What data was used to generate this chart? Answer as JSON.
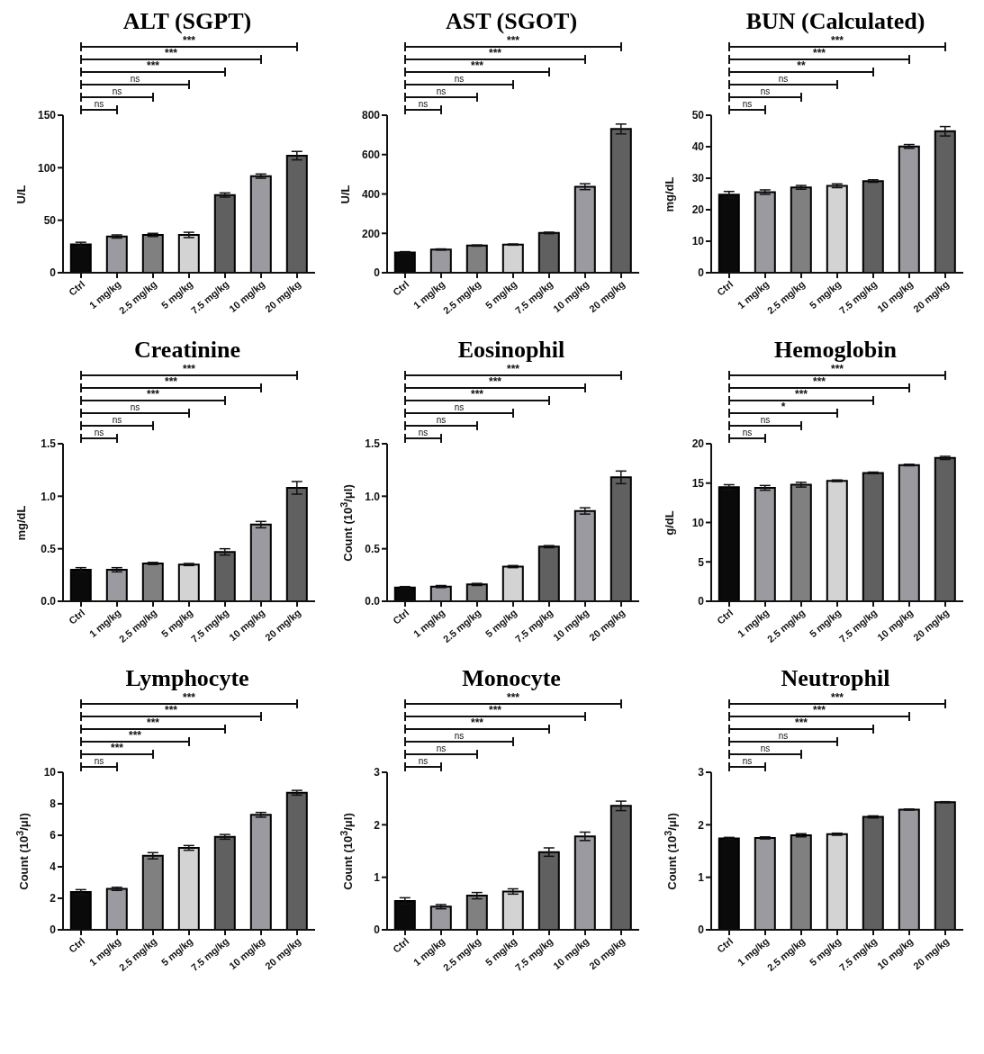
{
  "chart_data": [
    {
      "type": "bar",
      "title": "ALT (SGPT)",
      "ylabel": "U/L",
      "categories": [
        "Ctrl",
        "1 mg/kg",
        "2.5 mg/kg",
        "5 mg/kg",
        "7.5 mg/kg",
        "10 mg/kg",
        "20 mg/kg"
      ],
      "values": [
        27,
        34.5,
        36,
        36,
        74,
        92,
        111.5
      ],
      "errors": [
        2,
        1.5,
        1.5,
        2.5,
        2,
        2,
        4
      ],
      "colors": [
        "#0a0a0a",
        "#9a9aa0",
        "#808080",
        "#d3d3d3",
        "#606060",
        "#9a9aa0",
        "#606060"
      ],
      "ylim": [
        0,
        150
      ],
      "yticks": [
        0,
        50,
        100,
        150
      ],
      "annotations": [
        "ns",
        "ns",
        "ns",
        "***",
        "***",
        "***"
      ]
    },
    {
      "type": "bar",
      "title": "AST (SGOT)",
      "ylabel": "U/L",
      "categories": [
        "Ctrl",
        "1 mg/kg",
        "2.5 mg/kg",
        "5 mg/kg",
        "7.5 mg/kg",
        "10 mg/kg",
        "20 mg/kg"
      ],
      "values": [
        103,
        118,
        138,
        143,
        202,
        437,
        730
      ],
      "errors": [
        4,
        3,
        3,
        3,
        4,
        15,
        25
      ],
      "colors": [
        "#0a0a0a",
        "#9a9aa0",
        "#808080",
        "#d3d3d3",
        "#606060",
        "#9a9aa0",
        "#606060"
      ],
      "ylim": [
        0,
        800
      ],
      "yticks": [
        0,
        200,
        400,
        600,
        800
      ],
      "annotations": [
        "ns",
        "ns",
        "ns",
        "***",
        "***",
        "***"
      ]
    },
    {
      "type": "bar",
      "title": "BUN (Calculated)",
      "ylabel": "mg/dL",
      "categories": [
        "Ctrl",
        "1 mg/kg",
        "2.5 mg/kg",
        "5 mg/kg",
        "7.5 mg/kg",
        "10 mg/kg",
        "20 mg/kg"
      ],
      "values": [
        24.8,
        25.6,
        27.1,
        27.6,
        29.1,
        40.1,
        44.9
      ],
      "errors": [
        1,
        0.7,
        0.6,
        0.6,
        0.4,
        0.6,
        1.5
      ],
      "colors": [
        "#0a0a0a",
        "#9a9aa0",
        "#808080",
        "#d3d3d3",
        "#606060",
        "#9a9aa0",
        "#606060"
      ],
      "ylim": [
        0,
        50
      ],
      "yticks": [
        0,
        10,
        20,
        30,
        40,
        50
      ],
      "annotations": [
        "ns",
        "ns",
        "ns",
        "**",
        "***",
        "***"
      ]
    },
    {
      "type": "bar",
      "title": "Creatinine",
      "ylabel": "mg/dL",
      "categories": [
        "Ctrl",
        "1 mg/kg",
        "2.5 mg/kg",
        "5 mg/kg",
        "7.5 mg/kg",
        "10 mg/kg",
        "20 mg/kg"
      ],
      "values": [
        0.3,
        0.3,
        0.36,
        0.35,
        0.47,
        0.73,
        1.08
      ],
      "errors": [
        0.02,
        0.02,
        0.01,
        0.01,
        0.03,
        0.03,
        0.06
      ],
      "colors": [
        "#0a0a0a",
        "#9a9aa0",
        "#808080",
        "#d3d3d3",
        "#606060",
        "#9a9aa0",
        "#606060"
      ],
      "ylim": [
        0,
        1.5
      ],
      "yticks": [
        {
          "value": 0,
          "label": "0.0"
        },
        {
          "value": 0.5,
          "label": "0.5"
        },
        {
          "value": 1,
          "label": "1.0"
        },
        {
          "value": 1.5,
          "label": "1.5"
        }
      ],
      "annotations": [
        "ns",
        "ns",
        "ns",
        "***",
        "***",
        "***"
      ]
    },
    {
      "type": "bar",
      "title": "Eosinophil",
      "ylabel": "Count (10$^{3}$/μl)",
      "categories": [
        "Ctrl",
        "1 mg/kg",
        "2.5 mg/kg",
        "5 mg/kg",
        "7.5 mg/kg",
        "10 mg/kg",
        "20 mg/kg"
      ],
      "values": [
        0.13,
        0.14,
        0.16,
        0.33,
        0.52,
        0.86,
        1.18
      ],
      "errors": [
        0.01,
        0.01,
        0.01,
        0.01,
        0.01,
        0.03,
        0.06
      ],
      "colors": [
        "#0a0a0a",
        "#9a9aa0",
        "#808080",
        "#d3d3d3",
        "#606060",
        "#9a9aa0",
        "#606060"
      ],
      "ylim": [
        0,
        1.5
      ],
      "yticks": [
        {
          "value": 0,
          "label": "0.0"
        },
        {
          "value": 0.5,
          "label": "0.5"
        },
        {
          "value": 1,
          "label": "1.0"
        },
        {
          "value": 1.5,
          "label": "1.5"
        }
      ],
      "annotations": [
        "ns",
        "ns",
        "ns",
        "***",
        "***",
        "***"
      ]
    },
    {
      "type": "bar",
      "title": "Hemoglobin",
      "ylabel": "g/dL",
      "categories": [
        "Ctrl",
        "1 mg/kg",
        "2.5 mg/kg",
        "5 mg/kg",
        "7.5 mg/kg",
        "10 mg/kg",
        "20 mg/kg"
      ],
      "values": [
        14.5,
        14.4,
        14.8,
        15.3,
        16.3,
        17.3,
        18.2
      ],
      "errors": [
        0.3,
        0.3,
        0.3,
        0.1,
        0.1,
        0.1,
        0.2
      ],
      "colors": [
        "#0a0a0a",
        "#9a9aa0",
        "#808080",
        "#d3d3d3",
        "#606060",
        "#9a9aa0",
        "#606060"
      ],
      "ylim": [
        0,
        20
      ],
      "yticks": [
        0,
        5,
        10,
        15,
        20
      ],
      "annotations": [
        "ns",
        "ns",
        "*",
        "***",
        "***",
        "***"
      ]
    },
    {
      "type": "bar",
      "title": "Lymphocyte",
      "ylabel": "Count (10$^{3}$/μl)",
      "categories": [
        "Ctrl",
        "1 mg/kg",
        "2.5 mg/kg",
        "5 mg/kg",
        "7.5 mg/kg",
        "10 mg/kg",
        "20 mg/kg"
      ],
      "values": [
        2.4,
        2.6,
        4.7,
        5.2,
        5.9,
        7.3,
        8.7
      ],
      "errors": [
        0.15,
        0.1,
        0.2,
        0.15,
        0.15,
        0.15,
        0.15
      ],
      "colors": [
        "#0a0a0a",
        "#9a9aa0",
        "#808080",
        "#d3d3d3",
        "#606060",
        "#9a9aa0",
        "#606060"
      ],
      "ylim": [
        0,
        10
      ],
      "yticks": [
        0,
        2,
        4,
        6,
        8,
        10
      ],
      "annotations": [
        "ns",
        "***",
        "***",
        "***",
        "***",
        "***"
      ]
    },
    {
      "type": "bar",
      "title": "Monocyte",
      "ylabel": "Count (10$^{3}$/μl)",
      "categories": [
        "Ctrl",
        "1 mg/kg",
        "2.5 mg/kg",
        "5 mg/kg",
        "7.5 mg/kg",
        "10 mg/kg",
        "20 mg/kg"
      ],
      "values": [
        0.55,
        0.44,
        0.65,
        0.73,
        1.48,
        1.78,
        2.36
      ],
      "errors": [
        0.06,
        0.04,
        0.06,
        0.05,
        0.08,
        0.08,
        0.09
      ],
      "colors": [
        "#0a0a0a",
        "#9a9aa0",
        "#808080",
        "#d3d3d3",
        "#606060",
        "#9a9aa0",
        "#606060"
      ],
      "ylim": [
        0,
        3
      ],
      "yticks": [
        0,
        1,
        2,
        3
      ],
      "annotations": [
        "ns",
        "ns",
        "ns",
        "***",
        "***",
        "***"
      ]
    },
    {
      "type": "bar",
      "title": "Neutrophil",
      "ylabel": "Count (10$^{3}$/μl)",
      "categories": [
        "Ctrl",
        "1 mg/kg",
        "2.5 mg/kg",
        "5 mg/kg",
        "7.5 mg/kg",
        "10 mg/kg",
        "20 mg/kg"
      ],
      "values": [
        1.74,
        1.75,
        1.8,
        1.82,
        2.15,
        2.29,
        2.43
      ],
      "errors": [
        0.02,
        0.02,
        0.03,
        0.02,
        0.02,
        0.01,
        0.01
      ],
      "colors": [
        "#0a0a0a",
        "#9a9aa0",
        "#808080",
        "#d3d3d3",
        "#606060",
        "#9a9aa0",
        "#606060"
      ],
      "ylim": [
        0,
        3
      ],
      "yticks": [
        0,
        1,
        2,
        3
      ],
      "annotations": [
        "ns",
        "ns",
        "ns",
        "***",
        "***",
        "***"
      ]
    }
  ]
}
